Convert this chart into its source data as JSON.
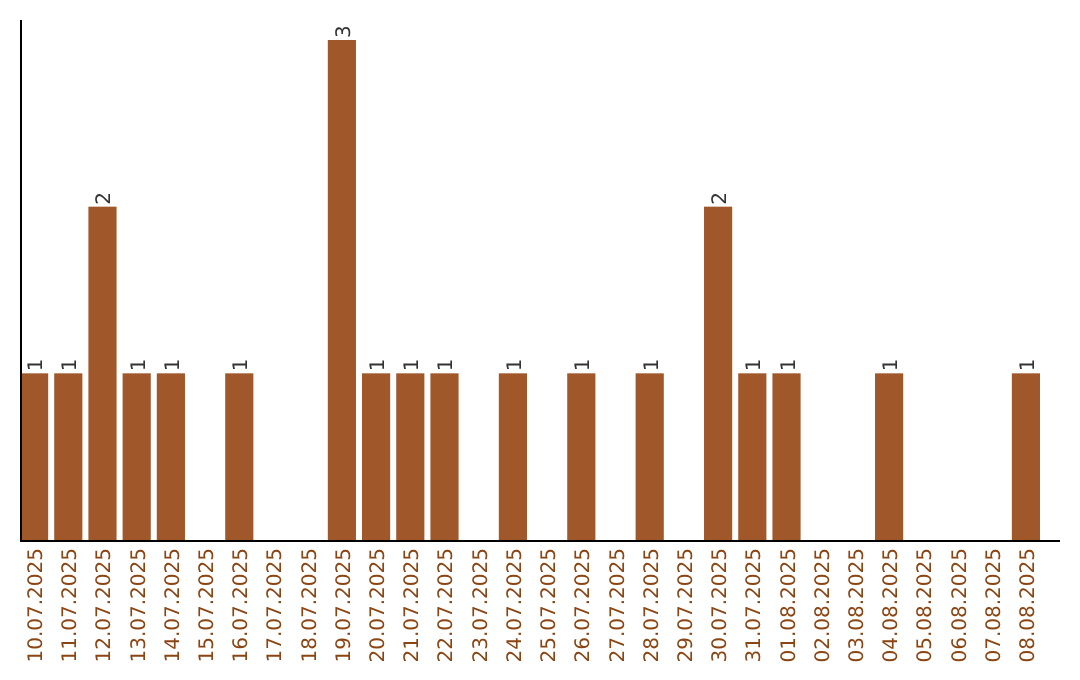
{
  "chart_data": {
    "type": "bar",
    "categories": [
      "10.07.2025",
      "11.07.2025",
      "12.07.2025",
      "13.07.2025",
      "14.07.2025",
      "15.07.2025",
      "16.07.2025",
      "17.07.2025",
      "18.07.2025",
      "19.07.2025",
      "20.07.2025",
      "21.07.2025",
      "22.07.2025",
      "23.07.2025",
      "24.07.2025",
      "25.07.2025",
      "26.07.2025",
      "27.07.2025",
      "28.07.2025",
      "29.07.2025",
      "30.07.2025",
      "31.07.2025",
      "01.08.2025",
      "02.08.2025",
      "03.08.2025",
      "04.08.2025",
      "05.08.2025",
      "06.08.2025",
      "07.08.2025",
      "08.08.2025"
    ],
    "values": [
      1,
      1,
      2,
      1,
      1,
      0,
      1,
      0,
      0,
      3,
      1,
      1,
      1,
      0,
      1,
      0,
      1,
      0,
      1,
      0,
      2,
      1,
      1,
      0,
      0,
      1,
      0,
      0,
      0,
      1
    ],
    "value_labels": [
      "1",
      "1",
      "2",
      "1",
      "1",
      null,
      "1",
      null,
      null,
      "3",
      "1",
      "1",
      "1",
      null,
      "1",
      null,
      "1",
      null,
      "1",
      null,
      "2",
      "1",
      "1",
      null,
      null,
      "1",
      null,
      null,
      null,
      "1"
    ],
    "color": "#a0572a"
  }
}
